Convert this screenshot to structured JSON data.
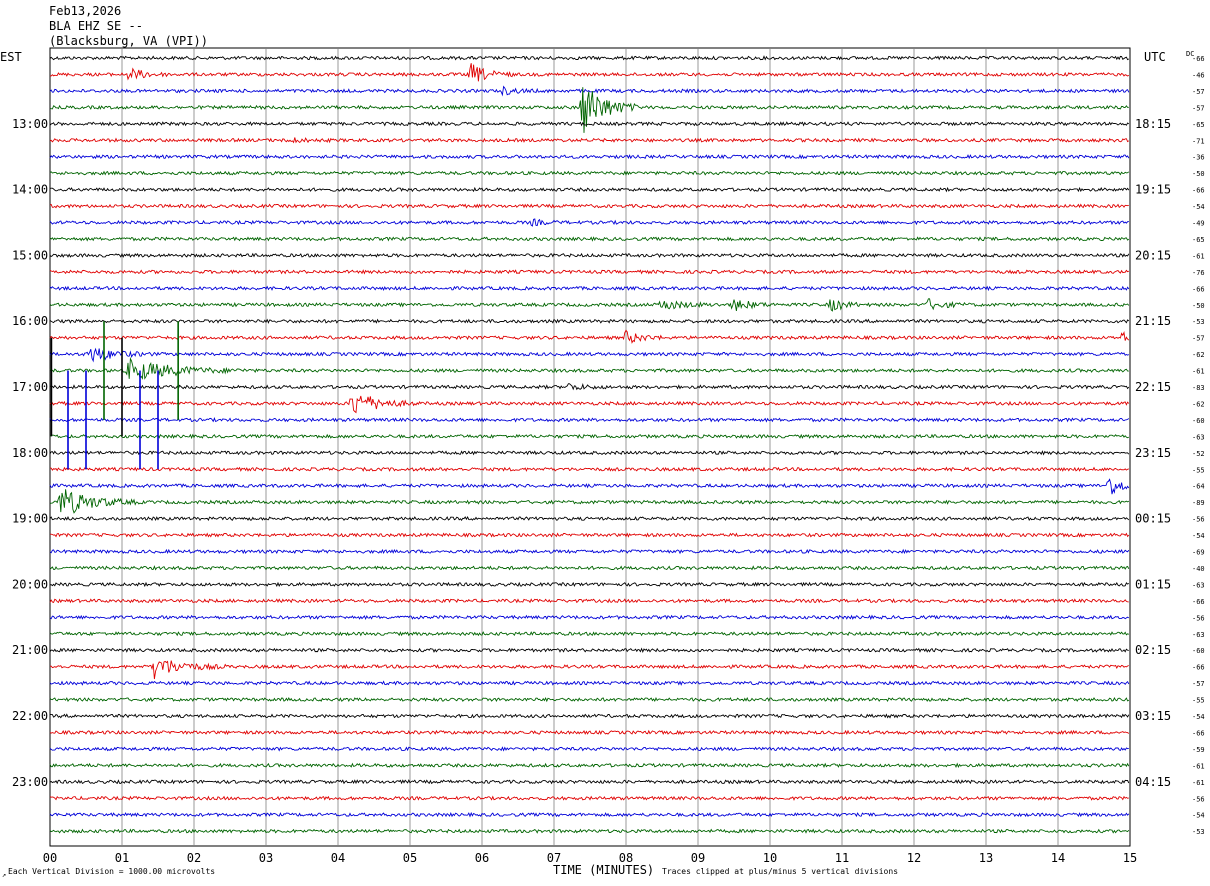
{
  "header": {
    "date": "Feb13,2026",
    "station": "BLA EHZ SE --",
    "location": "(Blacksburg, VA (VPI))"
  },
  "labels": {
    "left_timezone": "EST",
    "right_timezone": "UTC",
    "dc_header": "DC",
    "scale_note": "Each Vertical Division = 1000.00 microvolts",
    "x_axis_title": "TIME (MINUTES)",
    "clip_note": "Traces clipped at plus/minus 5 vertical divisions",
    "corner_mark": "↗"
  },
  "colors": {
    "trace_cycle": [
      "#000000",
      "#e00000",
      "#0000d8",
      "#006400"
    ],
    "grid": "#808080",
    "frame": "#000000",
    "background": "#ffffff"
  },
  "chart_data": {
    "type": "line",
    "plot_kind": "helicorder seismogram",
    "x_axis": {
      "label": "TIME (MINUTES)",
      "range": [
        0,
        15
      ],
      "tick_labels": [
        "00",
        "01",
        "02",
        "03",
        "04",
        "05",
        "06",
        "07",
        "08",
        "09",
        "10",
        "11",
        "12",
        "13",
        "14",
        "15"
      ]
    },
    "y_left_hour_labels": [
      "13:00",
      "14:00",
      "15:00",
      "16:00",
      "17:00",
      "18:00",
      "19:00",
      "20:00",
      "21:00",
      "22:00",
      "23:00"
    ],
    "y_right_hour_labels": [
      "18:15",
      "19:15",
      "20:15",
      "21:15",
      "22:15",
      "23:15",
      "00:15",
      "01:15",
      "02:15",
      "03:15",
      "04:15"
    ],
    "first_labeled_row": 4,
    "rows_per_hour": 4,
    "dc_offsets": [
      -66,
      -46,
      -57,
      -57,
      -65,
      -71,
      -36,
      -50,
      -66,
      -54,
      -49,
      -65,
      -61,
      -76,
      -66,
      -50,
      -53,
      -57,
      -62,
      -61,
      -83,
      -62,
      -60,
      -63,
      -52,
      -55,
      -64,
      -89,
      -56,
      -54,
      -69,
      -40,
      -63,
      -66,
      -56,
      -63,
      -60,
      -66,
      -57,
      -55,
      -54,
      -66,
      -59,
      -61,
      -61,
      -56,
      -54,
      -53
    ],
    "events": [
      {
        "row": 1,
        "minute": 1.1,
        "amp": 0.6,
        "dur": 0.6
      },
      {
        "row": 1,
        "minute": 5.85,
        "amp": 1.0,
        "dur": 0.6
      },
      {
        "row": 2,
        "minute": 6.3,
        "amp": 0.35,
        "dur": 0.5
      },
      {
        "row": 3,
        "minute": 7.4,
        "amp": 2.8,
        "dur": 0.8
      },
      {
        "row": 15,
        "minute": 8.5,
        "amp": 0.5,
        "dur": 0.8
      },
      {
        "row": 15,
        "minute": 9.5,
        "amp": 0.6,
        "dur": 0.6
      },
      {
        "row": 15,
        "minute": 10.85,
        "amp": 0.6,
        "dur": 0.5
      },
      {
        "row": 15,
        "minute": 12.2,
        "amp": 0.5,
        "dur": 0.6
      },
      {
        "row": 17,
        "minute": 8.0,
        "amp": 0.6,
        "dur": 0.6
      },
      {
        "row": 17,
        "minute": 14.9,
        "amp": 0.6,
        "dur": 0.3
      },
      {
        "row": 18,
        "minute": 0.55,
        "amp": 0.8,
        "dur": 0.9
      },
      {
        "row": 19,
        "minute": 1.1,
        "amp": 1.1,
        "dur": 1.6
      },
      {
        "row": 20,
        "minute": 7.2,
        "amp": 0.3,
        "dur": 0.6
      },
      {
        "row": 21,
        "minute": 4.2,
        "amp": 1.3,
        "dur": 0.9
      },
      {
        "row": 26,
        "minute": 14.7,
        "amp": 1.0,
        "dur": 0.6
      },
      {
        "row": 27,
        "minute": 0.15,
        "amp": 1.5,
        "dur": 1.1
      },
      {
        "row": 37,
        "minute": 1.45,
        "amp": 1.1,
        "dur": 1.0
      },
      {
        "row": 5,
        "minute": 3.3,
        "amp": 0.25,
        "dur": 0.6
      },
      {
        "row": 10,
        "minute": 6.7,
        "amp": 0.25,
        "dur": 0.5
      }
    ],
    "spikes": [
      {
        "row": 20,
        "minute": 0.02,
        "length_rows": 6
      },
      {
        "row": 19,
        "minute": 0.75,
        "length_rows": 6
      },
      {
        "row": 20,
        "minute": 1.0,
        "length_rows": 6
      },
      {
        "row": 19,
        "minute": 1.78,
        "length_rows": 6
      },
      {
        "row": 22,
        "minute": 0.25,
        "length_rows": 6
      },
      {
        "row": 22,
        "minute": 0.5,
        "length_rows": 6
      },
      {
        "row": 22,
        "minute": 1.25,
        "length_rows": 6
      },
      {
        "row": 22,
        "minute": 1.5,
        "length_rows": 6
      }
    ]
  }
}
